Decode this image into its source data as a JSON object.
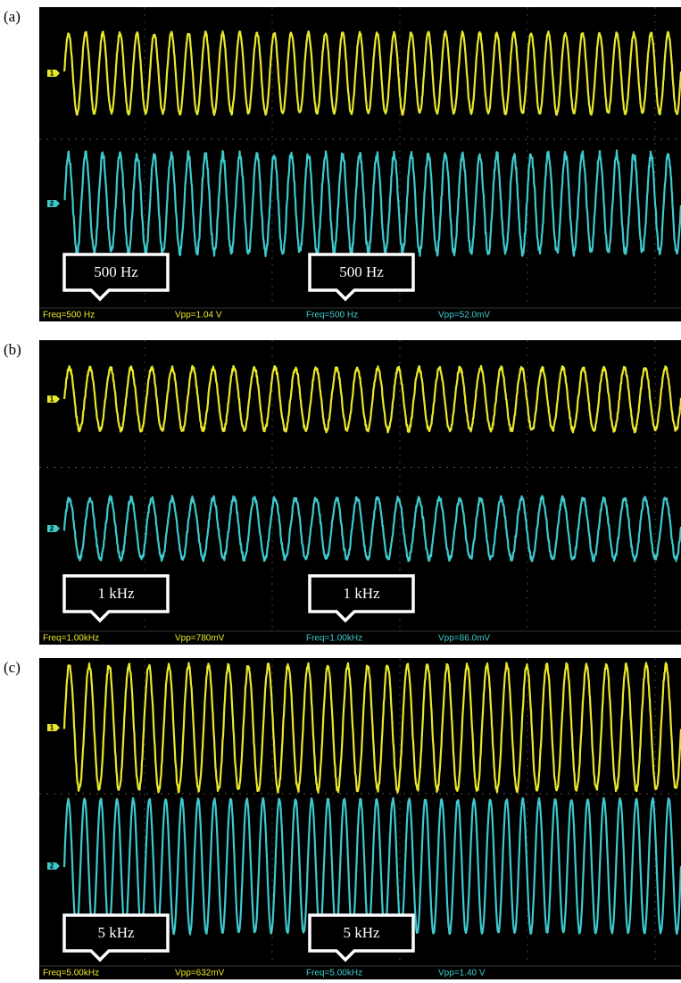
{
  "panels": [
    {
      "label": "(a)",
      "channels": [
        "1",
        "2"
      ],
      "callouts": [
        "500 Hz",
        "500 Hz"
      ],
      "readouts": [
        "Freq=500 Hz",
        "Vpp=1.04 V",
        "Freq=500 Hz",
        "Vpp=52.0mV"
      ]
    },
    {
      "label": "(b)",
      "channels": [
        "1",
        "2"
      ],
      "callouts": [
        "1 kHz",
        "1 kHz"
      ],
      "readouts": [
        "Freq=1.00kHz",
        "Vpp=780mV",
        "Freq=1.00kHz",
        "Vpp=86.0mV"
      ]
    },
    {
      "label": "(c)",
      "channels": [
        "1",
        "2"
      ],
      "callouts": [
        "5 kHz",
        "5 kHz"
      ],
      "readouts": [
        "Freq=5.00kHz",
        "Vpp=632mV",
        "Freq=5.00kHz",
        "Vpp=1.40 V"
      ]
    }
  ]
}
